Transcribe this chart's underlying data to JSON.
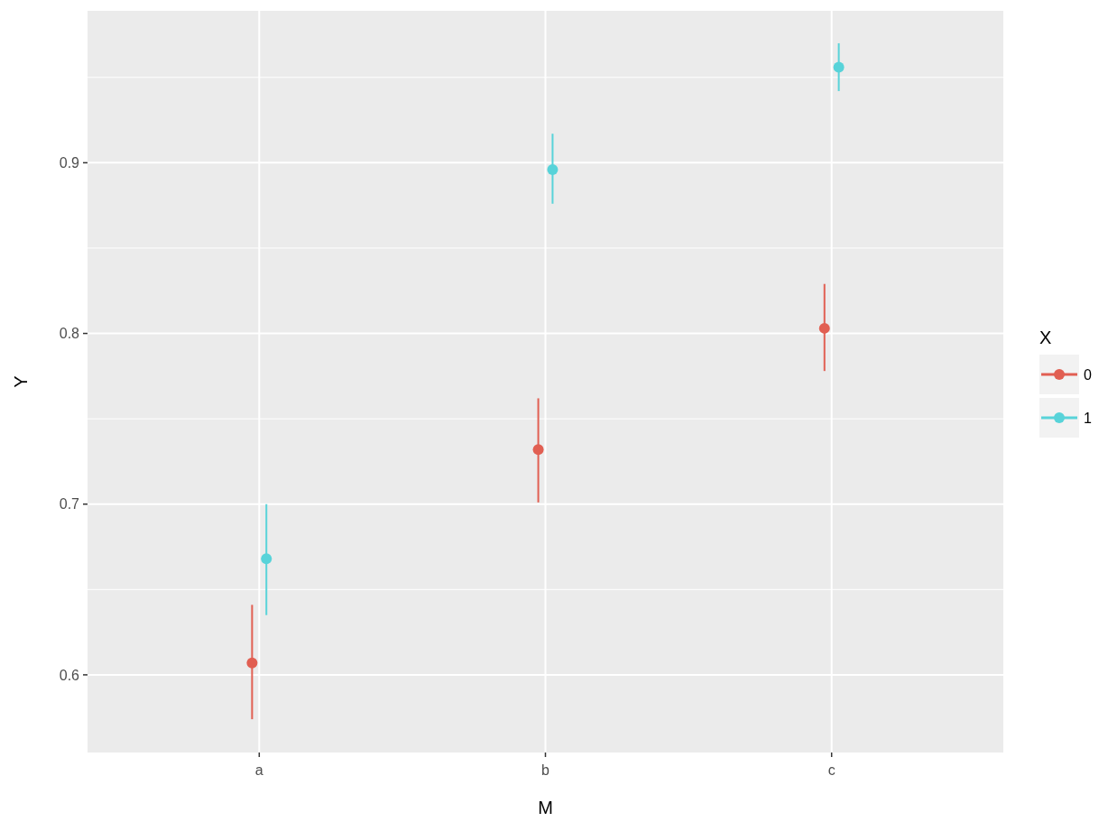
{
  "chart_data": {
    "type": "scatter",
    "xlabel": "M",
    "ylabel": "Y",
    "legend_title": "X",
    "categories": [
      "a",
      "b",
      "c"
    ],
    "series": [
      {
        "name": "0",
        "color": "#e15f52",
        "values": [
          0.607,
          0.732,
          0.803
        ],
        "errors": [
          [
            0.574,
            0.641
          ],
          [
            0.701,
            0.762
          ],
          [
            0.778,
            0.829
          ]
        ]
      },
      {
        "name": "1",
        "color": "#58d3d9",
        "values": [
          0.668,
          0.896,
          0.956
        ],
        "errors": [
          [
            0.635,
            0.7
          ],
          [
            0.876,
            0.917
          ],
          [
            0.942,
            0.97
          ]
        ]
      }
    ],
    "ylim": [
      0.5545,
      0.989
    ],
    "yticks": [
      0.6,
      {
        "value": 0.65,
        "label": null
      },
      0.7,
      {
        "value": 0.75,
        "label": null
      },
      0.8,
      {
        "value": 0.85,
        "label": null
      },
      0.9,
      {
        "value": 0.95,
        "label": null
      }
    ],
    "grid": true,
    "legend": "right",
    "marker": "circle"
  }
}
